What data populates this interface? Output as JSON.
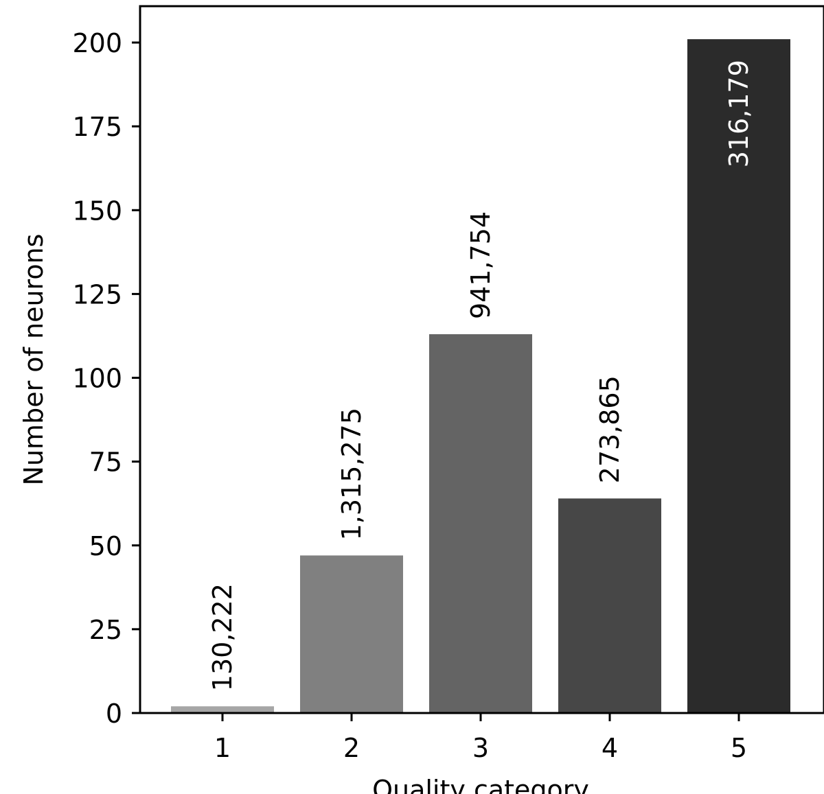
{
  "chart_data": {
    "type": "bar",
    "title": "",
    "xlabel": "Quality category",
    "ylabel": "Number of neurons",
    "categories": [
      "1",
      "2",
      "3",
      "4",
      "5"
    ],
    "values": [
      2,
      47,
      113,
      64,
      201
    ],
    "bar_labels": [
      "130,222",
      "1,315,275",
      "941,754",
      "273,865",
      "316,179"
    ],
    "bar_colors": [
      "#a6a6a6",
      "#808080",
      "#646464",
      "#474747",
      "#2b2b2b"
    ],
    "bar_label_colors": [
      "#000000",
      "#000000",
      "#000000",
      "#000000",
      "#ffffff"
    ],
    "bar_label_placement": [
      "above",
      "above",
      "above",
      "above",
      "inside"
    ],
    "ylim": [
      0,
      211
    ],
    "yticks": [
      0,
      25,
      50,
      75,
      100,
      125,
      150,
      175,
      200
    ],
    "grid": false,
    "legend": "none"
  }
}
